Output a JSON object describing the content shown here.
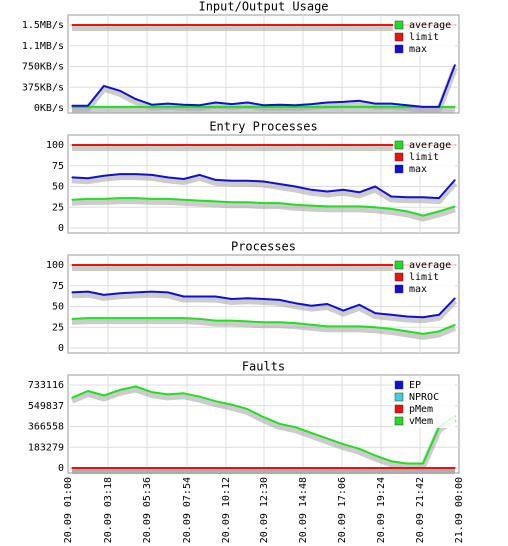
{
  "chart_data": [
    {
      "type": "line",
      "title": "Input/Output Usage",
      "y_ticks": [
        "1.5MB/s",
        "1.1MB/s",
        "750KB/s",
        "375KB/s",
        "0KB/s"
      ],
      "ylim": [
        0,
        1500
      ],
      "grid": true,
      "legend_position": "top-right",
      "x_count": 25,
      "series": [
        {
          "name": "average",
          "color": "#22dd22",
          "values": [
            20,
            20,
            20,
            20,
            20,
            20,
            20,
            20,
            20,
            20,
            20,
            20,
            20,
            20,
            20,
            20,
            20,
            20,
            20,
            20,
            20,
            20,
            20,
            20,
            20
          ]
        },
        {
          "name": "limit",
          "color": "#ee1111",
          "values": [
            1500,
            1500,
            1500,
            1500,
            1500,
            1500,
            1500,
            1500,
            1500,
            1500,
            1500,
            1500,
            1500,
            1500,
            1500,
            1500,
            1500,
            1500,
            1500,
            1500,
            1500,
            1500,
            1500,
            1500,
            1500
          ]
        },
        {
          "name": "max",
          "color": "#1111cc",
          "values": [
            40,
            40,
            400,
            310,
            160,
            60,
            80,
            60,
            50,
            100,
            70,
            100,
            50,
            60,
            50,
            70,
            100,
            110,
            130,
            80,
            80,
            50,
            20,
            20,
            780
          ]
        }
      ]
    },
    {
      "type": "line",
      "title": "Entry Processes",
      "y_ticks": [
        "100",
        "75",
        "50",
        "25",
        "0"
      ],
      "ylim": [
        0,
        100
      ],
      "grid": true,
      "legend_position": "top-right",
      "x_count": 25,
      "series": [
        {
          "name": "average",
          "color": "#22dd22",
          "values": [
            34,
            35,
            35,
            36,
            36,
            35,
            35,
            34,
            33,
            32,
            31,
            31,
            30,
            30,
            28,
            27,
            26,
            26,
            26,
            25,
            23,
            20,
            15,
            20,
            26
          ]
        },
        {
          "name": "limit",
          "color": "#ee1111",
          "values": [
            100,
            100,
            100,
            100,
            100,
            100,
            100,
            100,
            100,
            100,
            100,
            100,
            100,
            100,
            100,
            100,
            100,
            100,
            100,
            100,
            100,
            100,
            100,
            100,
            100
          ]
        },
        {
          "name": "max",
          "color": "#1111cc",
          "values": [
            61,
            60,
            63,
            65,
            65,
            64,
            61,
            59,
            64,
            58,
            57,
            57,
            56,
            53,
            50,
            46,
            44,
            46,
            43,
            50,
            38,
            37,
            37,
            36,
            58
          ]
        }
      ]
    },
    {
      "type": "line",
      "title": "Processes",
      "y_ticks": [
        "100",
        "75",
        "50",
        "25",
        "0"
      ],
      "ylim": [
        0,
        100
      ],
      "grid": true,
      "legend_position": "top-right",
      "x_count": 25,
      "series": [
        {
          "name": "average",
          "color": "#22dd22",
          "values": [
            35,
            36,
            36,
            36,
            36,
            36,
            36,
            36,
            35,
            33,
            33,
            32,
            31,
            31,
            30,
            28,
            26,
            26,
            26,
            25,
            23,
            20,
            17,
            20,
            28
          ]
        },
        {
          "name": "limit",
          "color": "#ee1111",
          "values": [
            100,
            100,
            100,
            100,
            100,
            100,
            100,
            100,
            100,
            100,
            100,
            100,
            100,
            100,
            100,
            100,
            100,
            100,
            100,
            100,
            100,
            100,
            100,
            100,
            100
          ]
        },
        {
          "name": "max",
          "color": "#1111cc",
          "values": [
            67,
            68,
            64,
            66,
            67,
            68,
            67,
            62,
            62,
            62,
            59,
            60,
            59,
            58,
            54,
            51,
            53,
            45,
            52,
            42,
            40,
            38,
            37,
            40,
            60
          ]
        }
      ]
    },
    {
      "type": "line",
      "title": "Faults",
      "y_ticks": [
        "733116",
        "549837",
        "366558",
        "183279",
        "0"
      ],
      "ylim": [
        0,
        733116
      ],
      "grid": true,
      "legend_position": "top-right",
      "x_count": 25,
      "series": [
        {
          "name": "EP",
          "color": "#1111cc",
          "values": [
            0,
            0,
            0,
            0,
            0,
            0,
            0,
            0,
            0,
            0,
            0,
            0,
            0,
            0,
            0,
            0,
            0,
            0,
            0,
            0,
            0,
            0,
            0,
            0,
            0
          ]
        },
        {
          "name": "NPROC",
          "color": "#44ccdd",
          "values": [
            0,
            0,
            0,
            0,
            0,
            0,
            0,
            0,
            0,
            0,
            0,
            0,
            0,
            0,
            0,
            0,
            0,
            0,
            0,
            0,
            0,
            0,
            0,
            0,
            0
          ]
        },
        {
          "name": "pMem",
          "color": "#ee1111",
          "values": [
            0,
            0,
            0,
            0,
            0,
            0,
            0,
            0,
            0,
            0,
            0,
            0,
            0,
            0,
            0,
            0,
            0,
            0,
            0,
            0,
            0,
            0,
            0,
            0,
            0
          ]
        },
        {
          "name": "vMem",
          "color": "#22dd22",
          "values": [
            620000,
            680000,
            640000,
            690000,
            720000,
            670000,
            650000,
            660000,
            630000,
            590000,
            560000,
            520000,
            450000,
            390000,
            360000,
            310000,
            260000,
            210000,
            170000,
            110000,
            60000,
            40000,
            40000,
            360000,
            460000
          ]
        }
      ]
    }
  ],
  "x_labels": [
    "20.09 01:00",
    "20.09 03:18",
    "20.09 05:36",
    "20.09 07:54",
    "20.09 10:12",
    "20.09 12:30",
    "20.09 14:48",
    "20.09 17:06",
    "20.09 19:24",
    "20.09 21:42",
    "21.09 00:00"
  ]
}
